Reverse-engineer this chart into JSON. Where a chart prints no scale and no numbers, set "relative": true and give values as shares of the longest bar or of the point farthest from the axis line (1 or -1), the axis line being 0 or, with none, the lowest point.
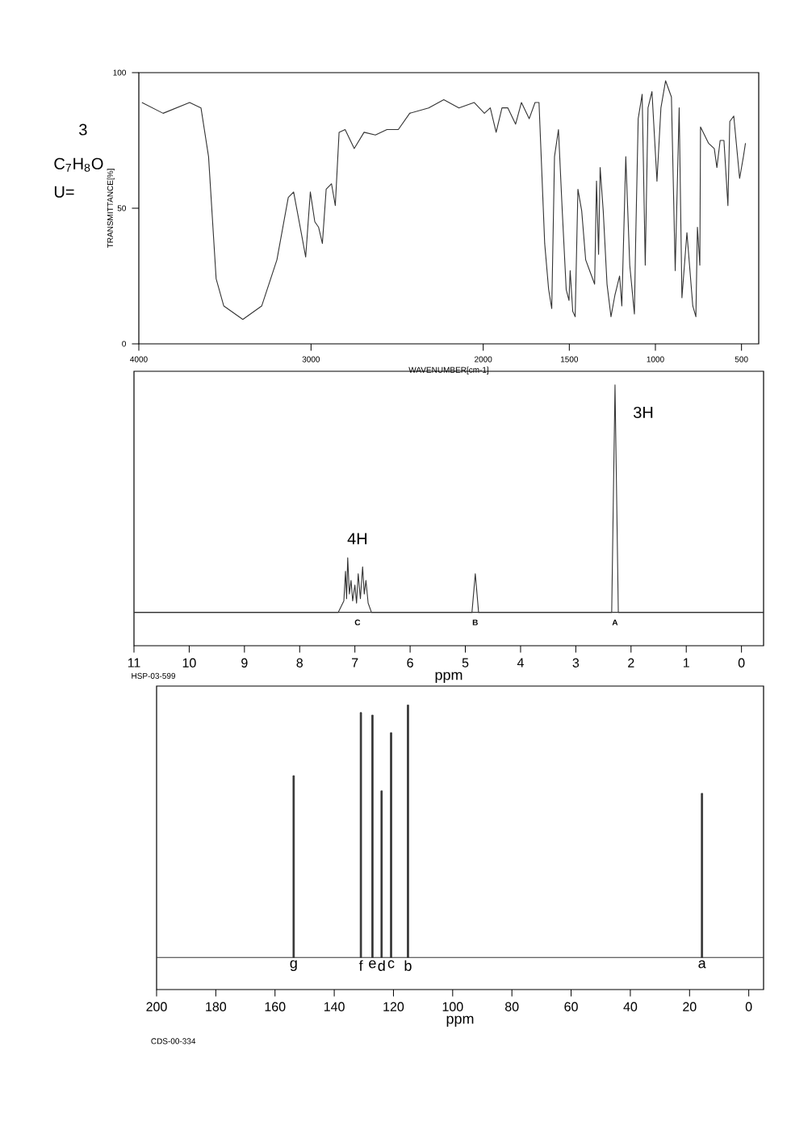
{
  "chart_data": [
    {
      "type": "line",
      "xlabel": "WAVENUMBER[cm-1]",
      "ylabel": "TRANSMITTANCE[%]",
      "color": "#333333",
      "x": [
        3982,
        3859,
        3705,
        3639,
        3595,
        3551,
        3507,
        3396,
        3286,
        3198,
        3132,
        3101,
        3057,
        3031,
        3004,
        2978,
        2956,
        2934,
        2912,
        2881,
        2859,
        2837,
        2802,
        2749,
        2692,
        2626,
        2559,
        2493,
        2427,
        2317,
        2229,
        2141,
        2053,
        1993,
        1959,
        1925,
        1891,
        1857,
        1812,
        1778,
        1733,
        1699,
        1676,
        1643,
        1620,
        1602,
        1586,
        1563,
        1541,
        1518,
        1502,
        1495,
        1480,
        1466,
        1450,
        1428,
        1405,
        1382,
        1353,
        1342,
        1330,
        1321,
        1303,
        1281,
        1258,
        1235,
        1208,
        1195,
        1172,
        1149,
        1122,
        1115,
        1100,
        1077,
        1059,
        1043,
        1020,
        991,
        968,
        941,
        907,
        885,
        862,
        846,
        817,
        783,
        765,
        756,
        742,
        738,
        692,
        658,
        643,
        624,
        602,
        579,
        568,
        545,
        511,
        489,
        477
      ],
      "values": [
        89,
        85,
        89,
        87,
        69,
        24,
        14,
        9,
        14,
        31,
        54,
        56,
        41,
        32,
        56,
        45,
        43,
        37,
        57,
        59,
        51,
        78,
        79,
        72,
        78,
        77,
        79,
        79,
        85,
        87,
        90,
        87,
        89,
        85,
        87,
        78,
        87,
        87,
        81,
        89,
        83,
        89,
        89,
        37,
        20,
        13,
        69,
        79,
        49,
        20,
        16,
        27,
        12,
        10,
        57,
        49,
        31,
        27,
        22,
        60,
        33,
        65,
        49,
        22,
        10,
        18,
        25,
        14,
        69,
        29,
        11,
        37,
        83,
        92,
        29,
        87,
        93,
        60,
        87,
        97,
        91,
        27,
        87,
        17,
        41,
        14,
        10,
        43,
        29,
        80,
        74,
        72,
        65,
        75,
        75,
        51,
        82,
        84,
        61,
        69,
        74
      ],
      "xlim": [
        4000,
        400
      ],
      "xticks": [
        4000,
        3000,
        2000,
        1500,
        1000,
        500
      ],
      "ylim": [
        0,
        100
      ],
      "yticks": [
        0,
        50,
        100
      ],
      "annotations": [
        "3",
        "C$_{7}$H$_{8}$O",
        "U="
      ]
    },
    {
      "type": "line",
      "relative": true,
      "xlabel": "ppm",
      "color": "#333333",
      "x": [
        11,
        7.3,
        7.2,
        7.17,
        7.15,
        7.13,
        7.1,
        7.07,
        7.04,
        7.0,
        6.97,
        6.94,
        6.9,
        6.86,
        6.83,
        6.8,
        6.76,
        6.7,
        4.88,
        4.82,
        4.76,
        2.35,
        2.29,
        2.23,
        -0.4
      ],
      "values": [
        0,
        0,
        0.05,
        0.18,
        0.06,
        0.24,
        0.08,
        0.14,
        0.05,
        0.12,
        0.04,
        0.17,
        0.06,
        0.2,
        0.08,
        0.14,
        0.04,
        0,
        0,
        0.17,
        0,
        0,
        1,
        0,
        0
      ],
      "xlim": [
        11,
        -0.4
      ],
      "xticks": [
        11,
        10,
        9,
        8,
        7,
        6,
        5,
        4,
        3,
        2,
        1,
        0
      ],
      "annotations": [
        "C",
        "B",
        "A",
        "4H",
        "3H",
        "HSP-03-599"
      ]
    },
    {
      "type": "bar",
      "relative": true,
      "xlabel": "ppm",
      "color": "#333333",
      "x": [
        153.7,
        131.0,
        127.1,
        124.0,
        120.8,
        115.1,
        15.8
      ],
      "values": [
        0.72,
        0.97,
        0.96,
        0.66,
        0.89,
        1,
        0.65
      ],
      "xlim": [
        200,
        -5
      ],
      "xticks": [
        200,
        180,
        160,
        140,
        120,
        100,
        80,
        60,
        40,
        20,
        0
      ],
      "annotations": [
        {
          "text": "g",
          "x": 153.7,
          "y": 0
        },
        {
          "text": "f",
          "x": 131.0,
          "y": 0
        },
        {
          "text": "e",
          "x": 127.1,
          "y": 0
        },
        {
          "text": "d",
          "x": 124.0,
          "y": 0
        },
        {
          "text": "c",
          "x": 120.8,
          "y": 0
        },
        {
          "text": "b",
          "x": 115.1,
          "y": 0
        },
        {
          "text": "a",
          "x": 15.8,
          "y": 0
        },
        "CDS-00-334"
      ]
    }
  ]
}
